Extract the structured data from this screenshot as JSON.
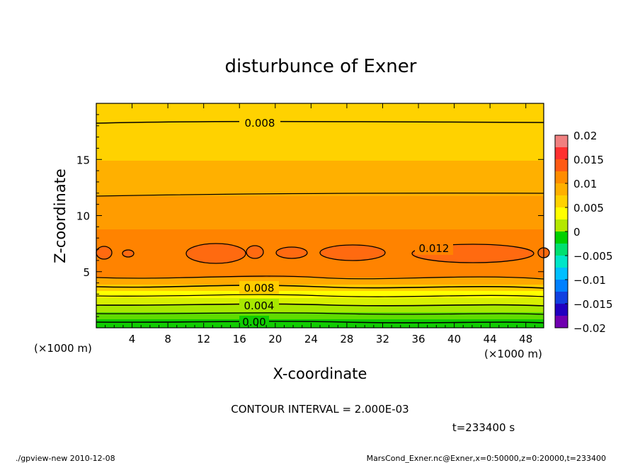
{
  "chart_data": {
    "type": "heatmap",
    "title": "disturbunce of Exner",
    "xlabel": "X-coordinate",
    "ylabel": "Z-coordinate",
    "x_unit": "(×1000 m)",
    "y_unit": "(×1000 m)",
    "xlim": [
      0,
      50
    ],
    "ylim": [
      0,
      20
    ],
    "x_ticks": [
      "4",
      "8",
      "12",
      "16",
      "20",
      "24",
      "28",
      "32",
      "36",
      "40",
      "44",
      "48"
    ],
    "y_ticks": [
      "5",
      "10",
      "15"
    ],
    "colorbar": {
      "ticks": [
        "0.02",
        "0.015",
        "0.01",
        "0.005",
        "0",
        "−0.005",
        "−0.01",
        "−0.015",
        "−0.02"
      ],
      "range": [
        -0.02,
        0.02
      ],
      "colors": [
        "#f08080",
        "#ff3030",
        "#ff5a14",
        "#ff8c00",
        "#ffb000",
        "#ffd200",
        "#ffff00",
        "#b4e800",
        "#00d000",
        "#00e070",
        "#00e6c8",
        "#00bfff",
        "#0080ff",
        "#1040e0",
        "#2000c0",
        "#7000b0"
      ]
    },
    "contour_labels": [
      "0.008",
      "0.012",
      "0.008",
      "0.004",
      "0.00"
    ],
    "vertical_profile": [
      {
        "z": 0.0,
        "value": 0.0005
      },
      {
        "z": 0.5,
        "value": 0.0015
      },
      {
        "z": 1.0,
        "value": 0.003
      },
      {
        "z": 1.5,
        "value": 0.0045
      },
      {
        "z": 2.0,
        "value": 0.0055
      },
      {
        "z": 2.5,
        "value": 0.007
      },
      {
        "z": 3.2,
        "value": 0.0085
      },
      {
        "z": 4.0,
        "value": 0.01
      },
      {
        "z": 5.0,
        "value": 0.0112
      },
      {
        "z": 6.5,
        "value": 0.0118
      },
      {
        "z": 8.0,
        "value": 0.0112
      },
      {
        "z": 10.0,
        "value": 0.0105
      },
      {
        "z": 12.0,
        "value": 0.0098
      },
      {
        "z": 15.0,
        "value": 0.0088
      },
      {
        "z": 18.0,
        "value": 0.0081
      },
      {
        "z": 20.0,
        "value": 0.0077
      }
    ],
    "contour_interval": "CONTOUR INTERVAL = 2.000E-03",
    "time": "t=233400 s"
  },
  "footer": {
    "left": "./gpview-new   2010-12-08",
    "right": "MarsCond_Exner.nc@Exner,x=0:50000,z=0:20000,t=233400"
  }
}
